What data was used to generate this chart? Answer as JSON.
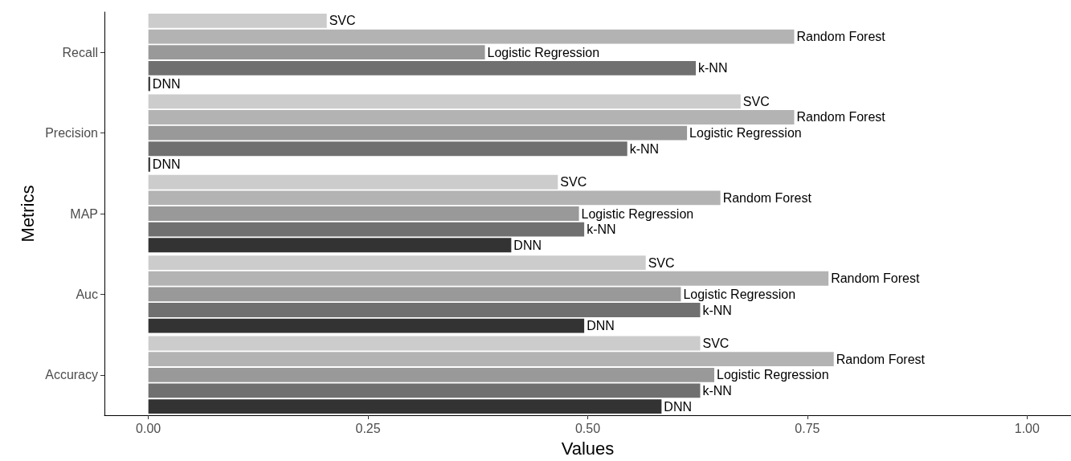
{
  "chart_data": {
    "type": "bar",
    "orientation": "horizontal",
    "xlabel": "Values",
    "ylabel": "Metrics",
    "categories": [
      "Recall",
      "Precision",
      "MAP",
      "Auc",
      "Accuracy"
    ],
    "series": [
      {
        "name": "SVC",
        "color": "#cccccc",
        "values": [
          0.203,
          0.674,
          0.466,
          0.566,
          0.628
        ]
      },
      {
        "name": "Random Forest",
        "color": "#b3b3b3",
        "values": [
          0.735,
          0.735,
          0.651,
          0.774,
          0.78
        ]
      },
      {
        "name": "Logistic Regression",
        "color": "#999999",
        "values": [
          0.383,
          0.613,
          0.49,
          0.606,
          0.644
        ]
      },
      {
        "name": "k-NN",
        "color": "#707070",
        "values": [
          0.623,
          0.545,
          0.496,
          0.628,
          0.628
        ]
      },
      {
        "name": "DNN",
        "color": "#333333",
        "values": [
          0.002,
          0.002,
          0.413,
          0.496,
          0.584
        ]
      }
    ],
    "xlim": [
      -0.05,
      1.05
    ],
    "xticks": [
      {
        "value": 0,
        "label": "0.00"
      },
      {
        "value": 0.25,
        "label": "0.25"
      },
      {
        "value": 0.5,
        "label": "0.50"
      },
      {
        "value": 0.75,
        "label": "0.75"
      },
      {
        "value": 1,
        "label": "1.00"
      }
    ],
    "grid": false,
    "legend": false
  }
}
